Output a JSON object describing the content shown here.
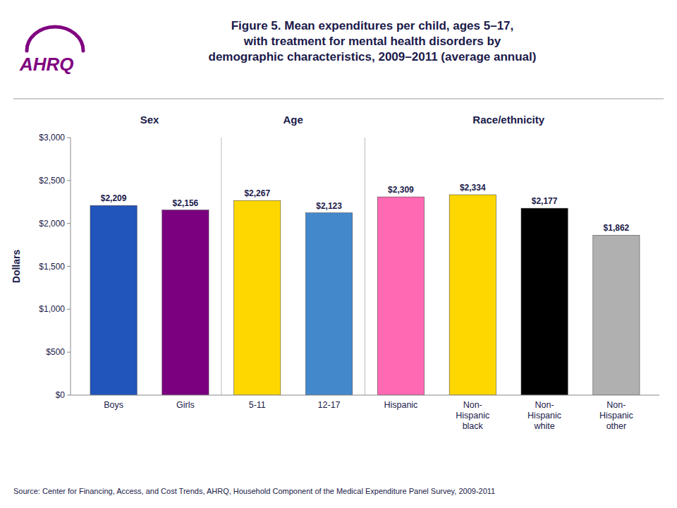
{
  "chart_data": {
    "type": "bar",
    "title": "Figure 5. Mean expenditures per child, ages 5–17,\nwith treatment for mental health disorders by\ndemographic characteristics, 2009–2011 (average annual)",
    "y_label": "Dollars",
    "categories": [
      "Boys",
      "Girls",
      "5-11",
      "12-17",
      "Hispanic",
      "Non-\nHispanic\nblack",
      "Non-\nHispanic\nwhite",
      "Non-\nHispanic\nother"
    ],
    "values": [
      2209,
      2156,
      2267,
      2123,
      2309,
      2334,
      2177,
      1862
    ],
    "value_labels": [
      "$2,209",
      "$2,156",
      "$2,267",
      "$2,123",
      "$2,309",
      "$2,334",
      "$2,177",
      "$1,862"
    ],
    "colors": [
      "#2255BB",
      "#7B0080",
      "#FFD700",
      "#4488CC",
      "#FF69B4",
      "#FFD700",
      "#000000",
      "#B0B0B0"
    ],
    "data_labels": true,
    "grid": false,
    "ylim": [
      0,
      3000
    ],
    "yticks": [
      {
        "value": 0,
        "label": "$0"
      },
      {
        "value": 500,
        "label": "$500"
      },
      {
        "value": 1000,
        "label": "$1,000"
      },
      {
        "value": 1500,
        "label": "$1,500"
      },
      {
        "value": 2000,
        "label": "$2,000"
      },
      {
        "value": 2500,
        "label": "$2,500"
      },
      {
        "value": 3000,
        "label": "$3,000"
      }
    ],
    "annotations": [
      {
        "text": "Sex",
        "from": "Boys",
        "to": "Girls"
      },
      {
        "text": "Age",
        "from": "5-11",
        "to": "12-17"
      },
      {
        "text": "Race/ethnicity",
        "from": "Hispanic",
        "to": "Non-\nHispanic\nother"
      }
    ],
    "logo": "AHRQ",
    "source": "Source: Center for Financing, Access, and Cost Trends, AHRQ, Household Component of the Medical Expenditure Panel Survey, 2009-2011"
  }
}
